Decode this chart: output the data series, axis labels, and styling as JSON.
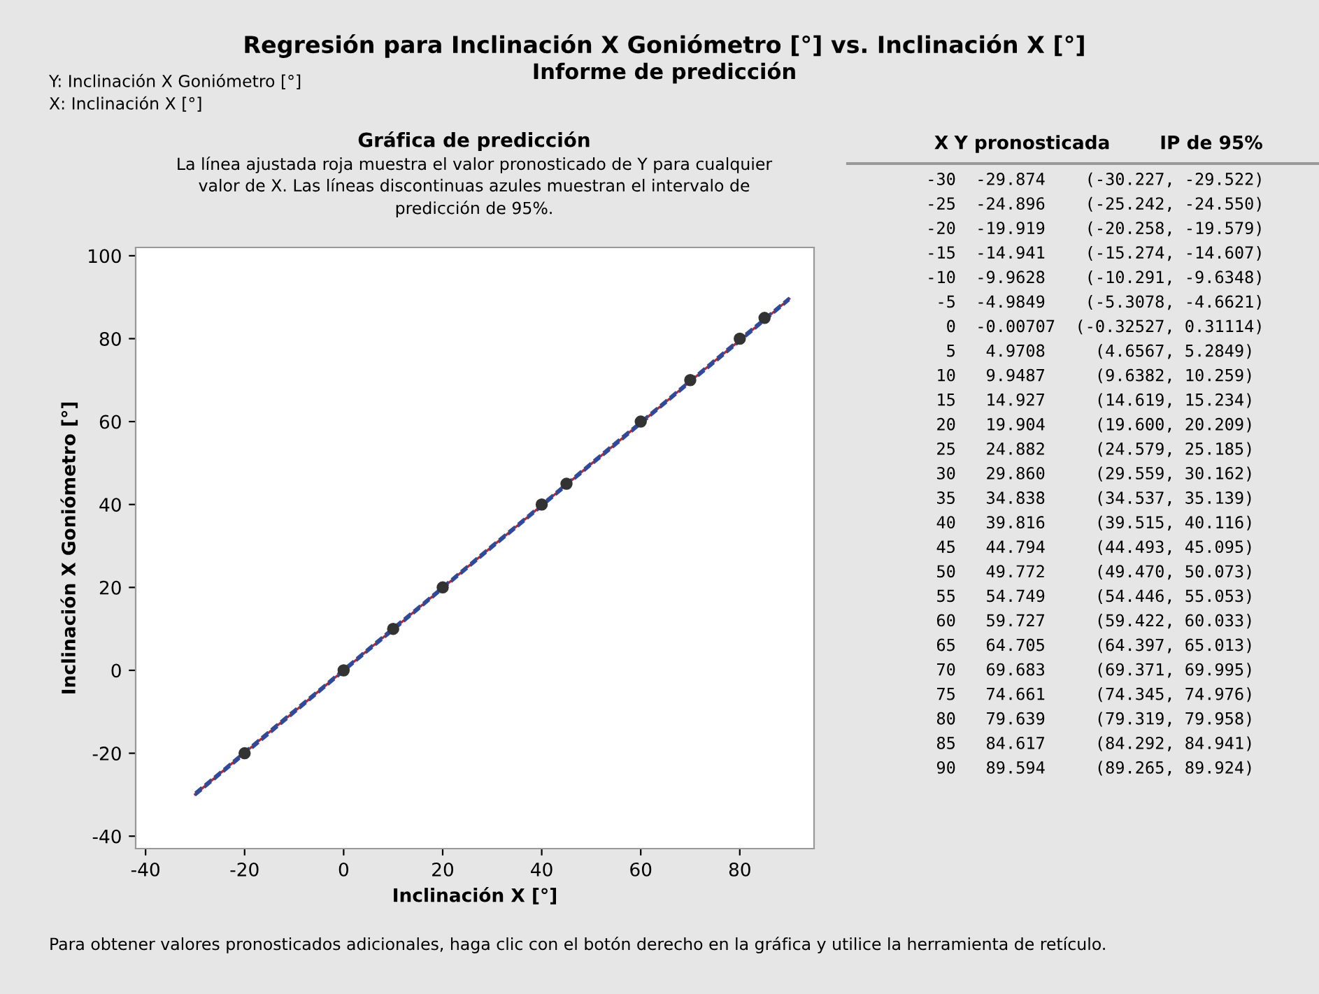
{
  "chart_data": [
    {
      "type": "scatter",
      "title": "Gráfica de predicción",
      "subtitle": "La línea ajustada roja muestra el valor pronosticado de Y para cualquier valor de X. Las líneas discontinuas azules muestran el intervalo de predicción de 95%.",
      "xlabel": "Inclinación X [°]",
      "ylabel": "Inclinación X Goniómetro [°]",
      "annotations": [
        "Regresión para Inclinación X Goniómetro [°] vs. Inclinación X [°]",
        "Informe de predicción",
        "Y: Inclinación X Goniómetro [°]",
        "X: Inclinación X [°]",
        "Para obtener valores pronosticados adicionales, haga clic con el botón derecho en la gráfica y utilice la herramienta de retículo."
      ],
      "x": [
        -20,
        0,
        10,
        20,
        40,
        45,
        60,
        70,
        80,
        85
      ],
      "series": [
        {
          "type": "scatter",
          "color": "#333333",
          "marker": "circle",
          "values": [
            -20,
            0,
            10,
            20,
            40,
            45,
            60,
            70,
            80,
            85
          ]
        },
        {
          "type": "line",
          "color": "#c0282d",
          "line_style": "solid",
          "marker": "none",
          "x": [
            -30,
            -25,
            -20,
            -15,
            -10,
            -5,
            0,
            5,
            10,
            15,
            20,
            25,
            30,
            35,
            40,
            45,
            50,
            55,
            60,
            65,
            70,
            75,
            80,
            85,
            90
          ],
          "values": [
            -29.9,
            -24.9,
            -19.9,
            -14.9,
            -10.0,
            -5.0,
            0.0,
            5.0,
            9.9,
            14.9,
            19.9,
            24.9,
            29.9,
            34.8,
            39.8,
            44.8,
            49.8,
            54.7,
            59.7,
            64.7,
            69.7,
            74.7,
            79.6,
            84.6,
            89.6
          ]
        },
        {
          "type": "line",
          "color": "#2e4a9a",
          "line_style": "dashed",
          "marker": "none",
          "x": [
            -30,
            -25,
            -20,
            -15,
            -10,
            -5,
            0,
            5,
            10,
            15,
            20,
            25,
            30,
            35,
            40,
            45,
            50,
            55,
            60,
            65,
            70,
            75,
            80,
            85,
            90
          ],
          "values": [
            -30.2,
            -25.2,
            -20.3,
            -15.3,
            -10.3,
            -5.3,
            -0.3,
            4.7,
            9.6,
            14.6,
            19.6,
            24.6,
            29.6,
            34.5,
            39.5,
            44.5,
            49.5,
            54.4,
            59.4,
            64.4,
            69.4,
            74.3,
            79.3,
            84.3,
            89.3
          ]
        },
        {
          "type": "line",
          "color": "#2e4a9a",
          "line_style": "dashed",
          "marker": "none",
          "x": [
            -30,
            -25,
            -20,
            -15,
            -10,
            -5,
            0,
            5,
            10,
            15,
            20,
            25,
            30,
            35,
            40,
            45,
            50,
            55,
            60,
            65,
            70,
            75,
            80,
            85,
            90
          ],
          "values": [
            -29.5,
            -24.6,
            -19.6,
            -14.6,
            -9.6,
            -4.7,
            0.3,
            5.3,
            10.3,
            15.2,
            20.2,
            25.2,
            30.2,
            35.1,
            40.1,
            45.1,
            50.1,
            55.1,
            60.0,
            65.0,
            70.0,
            75.0,
            80.0,
            84.9,
            89.9
          ]
        }
      ],
      "xlim": [
        -42,
        95
      ],
      "ylim": [
        -43,
        102
      ],
      "xticks": [
        -40,
        -20,
        0,
        20,
        40,
        60,
        80
      ],
      "yticks": [
        -40,
        -20,
        0,
        20,
        40,
        60,
        80,
        100
      ],
      "grid": false,
      "legend": false
    },
    {
      "type": "other",
      "categories": [
        "X",
        "Y pronosticada",
        "IP de 95%"
      ],
      "annotations": [
        "-30\t-29.874\t(-30.227, -29.522)",
        "-25\t-24.896\t(-25.242, -24.550)",
        "-20\t-19.919\t(-20.258, -19.579)",
        "-15\t-14.941\t(-15.274, -14.607)",
        "-10\t-9.9628\t(-10.291, -9.6348)",
        "-5\t-4.9849\t(-5.3078, -4.6621)",
        "0\t-0.00707\t(-0.32527, 0.31114)",
        "5\t4.9708\t(4.6567, 5.2849)",
        "10\t9.9487\t(9.6382, 10.259)",
        "15\t14.927\t(14.619, 15.234)",
        "20\t19.904\t(19.600, 20.209)",
        "25\t24.882\t(24.579, 25.185)",
        "30\t29.860\t(29.559, 30.162)",
        "35\t34.838\t(34.537, 35.139)",
        "40\t39.816\t(39.515, 40.116)",
        "45\t44.794\t(44.493, 45.095)",
        "50\t49.772\t(49.470, 50.073)",
        "55\t54.749\t(54.446, 55.053)",
        "60\t59.727\t(59.422, 60.033)",
        "65\t64.705\t(64.397, 65.013)",
        "70\t69.683\t(69.371, 69.995)",
        "75\t74.661\t(74.345, 74.976)",
        "80\t79.639\t(79.319, 79.958)",
        "85\t84.617\t(84.292, 84.941)",
        "90\t89.594\t(89.265, 89.924)"
      ]
    }
  ]
}
